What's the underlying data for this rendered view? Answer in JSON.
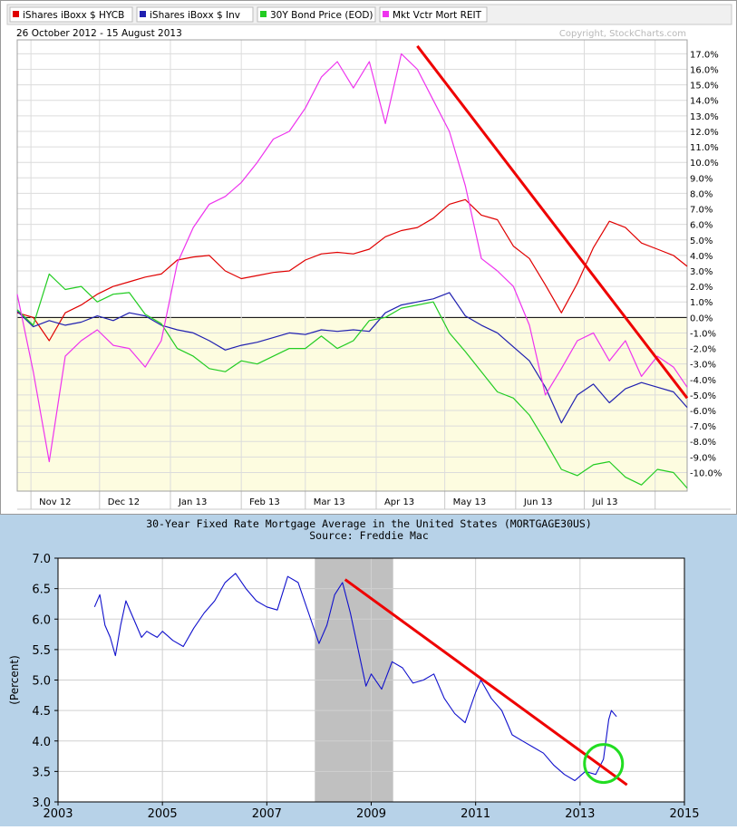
{
  "chart_data": [
    {
      "type": "line",
      "legend": [
        {
          "name": "iShares iBoxx $ HYCB",
          "color": "#e00000"
        },
        {
          "name": "iShares iBoxx $ Inv",
          "color": "#2020b0"
        },
        {
          "name": "30Y Bond Price (EOD)",
          "color": "#22cc22"
        },
        {
          "name": "Mkt Vctr Mort REIT",
          "color": "#ee33ee"
        }
      ],
      "legend_placement": "top-left",
      "date_range": "26 October 2012 - 15 August 2013",
      "credit": "Copyright, StockCharts.com",
      "x_ticks": [
        "Nov 12",
        "Dec 12",
        "Jan 13",
        "Feb 13",
        "Mar 13",
        "Apr 13",
        "May 13",
        "Jun 13",
        "Jul 13"
      ],
      "y_ticks": [
        "17.0%",
        "16.0%",
        "15.0%",
        "14.0%",
        "13.0%",
        "12.0%",
        "11.0%",
        "10.0%",
        "9.0%",
        "8.0%",
        "7.0%",
        "6.0%",
        "5.0%",
        "4.0%",
        "3.0%",
        "2.0%",
        "1.0%",
        "0.0%",
        "-1.0%",
        "-2.0%",
        "-3.0%",
        "-4.0%",
        "-5.0%",
        "-6.0%",
        "-7.0%",
        "-8.0%",
        "-9.0%",
        "-10.0%"
      ],
      "ylim": [
        -11.2,
        17.9
      ],
      "grid": true,
      "series": [
        {
          "name": "iShares iBoxx $ HYCB",
          "color": "#e00000",
          "x": [
            "2012-10-26",
            "2012-11-02",
            "2012-11-09",
            "2012-11-16",
            "2012-11-23",
            "2012-11-30",
            "2012-12-07",
            "2012-12-14",
            "2012-12-21",
            "2012-12-28",
            "2013-01-04",
            "2013-01-11",
            "2013-01-18",
            "2013-01-25",
            "2013-02-01",
            "2013-02-08",
            "2013-02-15",
            "2013-02-22",
            "2013-03-01",
            "2013-03-08",
            "2013-03-15",
            "2013-03-22",
            "2013-03-29",
            "2013-04-05",
            "2013-04-12",
            "2013-04-19",
            "2013-04-26",
            "2013-05-03",
            "2013-05-10",
            "2013-05-17",
            "2013-05-24",
            "2013-05-31",
            "2013-06-07",
            "2013-06-14",
            "2013-06-21",
            "2013-06-28",
            "2013-07-05",
            "2013-07-12",
            "2013-07-19",
            "2013-07-26",
            "2013-08-02",
            "2013-08-09",
            "2013-08-15"
          ],
          "values": [
            0.3,
            0.0,
            -1.5,
            0.3,
            0.8,
            1.5,
            2.0,
            2.3,
            2.6,
            2.8,
            3.7,
            3.9,
            4.0,
            3.0,
            2.5,
            2.7,
            2.9,
            3.0,
            3.7,
            4.1,
            4.2,
            4.1,
            4.4,
            5.2,
            5.6,
            5.8,
            6.4,
            7.3,
            7.6,
            6.6,
            6.3,
            4.6,
            3.8,
            2.1,
            0.3,
            2.2,
            4.5,
            6.2,
            5.8,
            4.8,
            4.4,
            4.0,
            3.3
          ]
        },
        {
          "name": "iShares iBoxx $ Inv",
          "color": "#2020b0",
          "x": [
            "2012-10-26",
            "2012-11-02",
            "2012-11-09",
            "2012-11-16",
            "2012-11-23",
            "2012-11-30",
            "2012-12-07",
            "2012-12-14",
            "2012-12-21",
            "2012-12-28",
            "2013-01-04",
            "2013-01-11",
            "2013-01-18",
            "2013-01-25",
            "2013-02-01",
            "2013-02-08",
            "2013-02-15",
            "2013-02-22",
            "2013-03-01",
            "2013-03-08",
            "2013-03-15",
            "2013-03-22",
            "2013-03-29",
            "2013-04-05",
            "2013-04-12",
            "2013-04-19",
            "2013-04-26",
            "2013-05-03",
            "2013-05-10",
            "2013-05-17",
            "2013-05-24",
            "2013-05-31",
            "2013-06-07",
            "2013-06-14",
            "2013-06-21",
            "2013-06-28",
            "2013-07-05",
            "2013-07-12",
            "2013-07-19",
            "2013-07-26",
            "2013-08-02",
            "2013-08-09",
            "2013-08-15"
          ],
          "values": [
            0.4,
            -0.6,
            -0.2,
            -0.5,
            -0.3,
            0.1,
            -0.2,
            0.3,
            0.1,
            -0.5,
            -0.8,
            -1.0,
            -1.5,
            -2.1,
            -1.8,
            -1.6,
            -1.3,
            -1.0,
            -1.1,
            -0.8,
            -0.9,
            -0.8,
            -0.9,
            0.3,
            0.8,
            1.0,
            1.2,
            1.6,
            0.1,
            -0.5,
            -1.0,
            -1.9,
            -2.8,
            -4.5,
            -6.8,
            -5.0,
            -4.3,
            -5.5,
            -4.6,
            -4.2,
            -4.5,
            -4.8,
            -5.8
          ]
        },
        {
          "name": "30Y Bond Price (EOD)",
          "color": "#22cc22",
          "x": [
            "2012-10-26",
            "2012-11-02",
            "2012-11-09",
            "2012-11-16",
            "2012-11-23",
            "2012-11-30",
            "2012-12-07",
            "2012-12-14",
            "2012-12-21",
            "2012-12-28",
            "2013-01-04",
            "2013-01-11",
            "2013-01-18",
            "2013-01-25",
            "2013-02-01",
            "2013-02-08",
            "2013-02-15",
            "2013-02-22",
            "2013-03-01",
            "2013-03-08",
            "2013-03-15",
            "2013-03-22",
            "2013-03-29",
            "2013-04-05",
            "2013-04-12",
            "2013-04-19",
            "2013-04-26",
            "2013-05-03",
            "2013-05-10",
            "2013-05-17",
            "2013-05-24",
            "2013-05-31",
            "2013-06-07",
            "2013-06-14",
            "2013-06-21",
            "2013-06-28",
            "2013-07-05",
            "2013-07-12",
            "2013-07-19",
            "2013-07-26",
            "2013-08-02",
            "2013-08-09",
            "2013-08-15"
          ],
          "values": [
            0.5,
            -0.5,
            2.8,
            1.8,
            2.0,
            1.0,
            1.5,
            1.6,
            0.2,
            -0.4,
            -2.0,
            -2.5,
            -3.3,
            -3.5,
            -2.8,
            -3.0,
            -2.5,
            -2.0,
            -2.0,
            -1.2,
            -2.0,
            -1.5,
            -0.2,
            0.0,
            0.6,
            0.8,
            1.0,
            -1.0,
            -2.2,
            -3.5,
            -4.8,
            -5.2,
            -6.3,
            -8.0,
            -9.8,
            -10.2,
            -9.5,
            -9.3,
            -10.3,
            -10.8,
            -9.8,
            -10.0,
            -11.0
          ]
        },
        {
          "name": "Mkt Vctr Mort REIT",
          "color": "#ee33ee",
          "x": [
            "2012-10-26",
            "2012-11-02",
            "2012-11-09",
            "2012-11-16",
            "2012-11-23",
            "2012-11-30",
            "2012-12-07",
            "2012-12-14",
            "2012-12-21",
            "2012-12-28",
            "2013-01-04",
            "2013-01-11",
            "2013-01-18",
            "2013-01-25",
            "2013-02-01",
            "2013-02-08",
            "2013-02-15",
            "2013-02-22",
            "2013-03-01",
            "2013-03-08",
            "2013-03-15",
            "2013-03-22",
            "2013-03-29",
            "2013-04-05",
            "2013-04-12",
            "2013-04-19",
            "2013-04-26",
            "2013-05-03",
            "2013-05-10",
            "2013-05-17",
            "2013-05-24",
            "2013-05-31",
            "2013-06-07",
            "2013-06-14",
            "2013-06-21",
            "2013-06-28",
            "2013-07-05",
            "2013-07-12",
            "2013-07-19",
            "2013-07-26",
            "2013-08-02",
            "2013-08-09",
            "2013-08-15"
          ],
          "values": [
            1.5,
            -3.5,
            -9.3,
            -2.5,
            -1.5,
            -0.8,
            -1.8,
            -2.0,
            -3.2,
            -1.5,
            3.5,
            5.8,
            7.3,
            7.8,
            8.7,
            10.0,
            11.5,
            12.0,
            13.5,
            15.5,
            16.5,
            14.8,
            16.5,
            12.5,
            17.0,
            16.0,
            14.0,
            12.0,
            8.5,
            3.8,
            3.0,
            2.0,
            -0.5,
            -5.0,
            -3.3,
            -1.5,
            -1.0,
            -2.8,
            -1.5,
            -3.8,
            -2.5,
            -3.2,
            -4.5
          ]
        }
      ],
      "trendline_color": "#ee0000"
    },
    {
      "type": "line",
      "title": "30-Year Fixed Rate Mortgage Average in the United States (MORTGAGE30US)",
      "subtitle": "Source: Freddie Mac",
      "ylabel": "(Percent)",
      "xlabel": "",
      "xlim": [
        2003,
        2015
      ],
      "ylim": [
        3.0,
        7.0
      ],
      "x_ticks": [
        "2003",
        "2005",
        "2007",
        "2009",
        "2011",
        "2013",
        "2015"
      ],
      "y_ticks": [
        "7.0",
        "6.5",
        "6.0",
        "5.5",
        "5.0",
        "4.5",
        "4.0",
        "3.5",
        "3.0"
      ],
      "grid": true,
      "recession_shading": [
        2007.92,
        2009.42
      ],
      "series": [
        {
          "name": "MORTGAGE30US",
          "color": "#1010cc",
          "x": [
            2003.7,
            2003.8,
            2003.9,
            2004.0,
            2004.1,
            2004.2,
            2004.3,
            2004.4,
            2004.5,
            2004.6,
            2004.7,
            2004.8,
            2004.9,
            2005.0,
            2005.2,
            2005.4,
            2005.6,
            2005.8,
            2006.0,
            2006.2,
            2006.4,
            2006.6,
            2006.8,
            2007.0,
            2007.2,
            2007.4,
            2007.6,
            2007.8,
            2008.0,
            2008.15,
            2008.3,
            2008.45,
            2008.6,
            2008.75,
            2008.9,
            2009.0,
            2009.2,
            2009.4,
            2009.6,
            2009.8,
            2010.0,
            2010.2,
            2010.4,
            2010.6,
            2010.8,
            2011.0,
            2011.1,
            2011.3,
            2011.5,
            2011.7,
            2011.9,
            2012.1,
            2012.3,
            2012.5,
            2012.7,
            2012.9,
            2013.1,
            2013.3,
            2013.45,
            2013.55,
            2013.6,
            2013.7
          ],
          "values": [
            6.2,
            6.4,
            5.9,
            5.7,
            5.4,
            5.9,
            6.3,
            6.1,
            5.9,
            5.7,
            5.8,
            5.75,
            5.7,
            5.8,
            5.65,
            5.55,
            5.85,
            6.1,
            6.3,
            6.6,
            6.75,
            6.5,
            6.3,
            6.2,
            6.15,
            6.7,
            6.6,
            6.1,
            5.6,
            5.9,
            6.4,
            6.6,
            6.1,
            5.5,
            4.9,
            5.1,
            4.85,
            5.3,
            5.2,
            4.95,
            5.0,
            5.1,
            4.7,
            4.45,
            4.3,
            4.8,
            5.0,
            4.7,
            4.5,
            4.1,
            4.0,
            3.9,
            3.8,
            3.6,
            3.45,
            3.35,
            3.5,
            3.45,
            3.7,
            4.35,
            4.5,
            4.4
          ]
        }
      ],
      "trendline_color": "#ee0000",
      "highlight_circle_color": "#22dd22"
    }
  ]
}
